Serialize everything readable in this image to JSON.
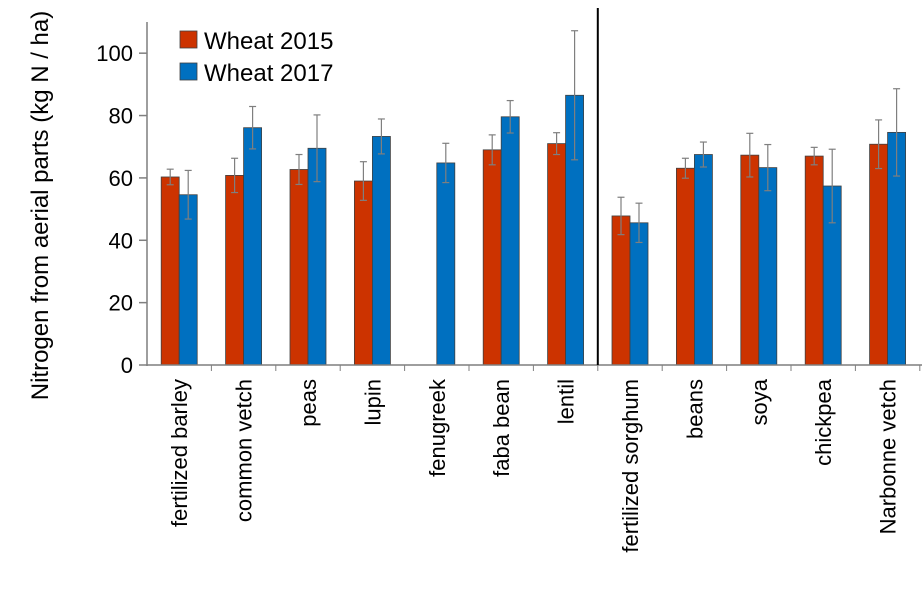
{
  "chart_data": {
    "type": "bar",
    "title": "",
    "xlabel": "",
    "ylabel": "Nitrogen from aerial parts (kg N / ha)",
    "ylim": [
      0,
      110
    ],
    "yticks": [
      0,
      20,
      40,
      60,
      80,
      100
    ],
    "grid": false,
    "legend_position": "top-left",
    "categories": [
      "fertilized barley",
      "common vetch",
      "peas",
      "lupin",
      "fenugreek",
      "faba bean",
      "lentil",
      "fertilized sorghum",
      "beans",
      "soya",
      "chickpea",
      "Narbonne vetch"
    ],
    "separator_after_index": 6,
    "series": [
      {
        "name": "Wheat 2015",
        "color": "#cc3300",
        "values": [
          60.3,
          60.8,
          62.7,
          59.0,
          null,
          69.0,
          71.0,
          47.8,
          63.1,
          67.3,
          67.0,
          70.8
        ],
        "errors": [
          2.5,
          5.5,
          4.8,
          6.2,
          null,
          4.8,
          3.5,
          6.0,
          3.2,
          7.0,
          2.8,
          7.8
        ]
      },
      {
        "name": "Wheat 2017",
        "color": "#0070c0",
        "values": [
          54.6,
          76.1,
          69.5,
          73.3,
          64.8,
          79.6,
          86.5,
          45.6,
          67.5,
          63.3,
          57.4,
          74.6
        ],
        "errors": [
          7.8,
          6.8,
          10.7,
          5.6,
          6.3,
          5.2,
          20.7,
          6.3,
          4.0,
          7.4,
          11.8,
          14.0
        ]
      }
    ]
  }
}
